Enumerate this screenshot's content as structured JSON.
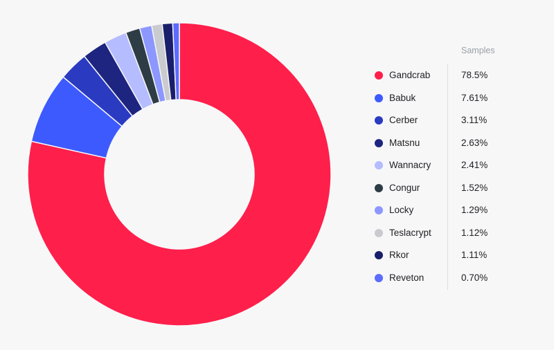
{
  "chart_data": {
    "type": "pie",
    "donut": true,
    "legend_header": "Samples",
    "legend_position": "right",
    "series": [
      {
        "name": "Gandcrab",
        "value": 78.5,
        "label": "78.5%",
        "color": "#ff1f4b"
      },
      {
        "name": "Babuk",
        "value": 7.61,
        "label": "7.61%",
        "color": "#3d5afe"
      },
      {
        "name": "Cerber",
        "value": 3.11,
        "label": "3.11%",
        "color": "#2a3bc2"
      },
      {
        "name": "Matsnu",
        "value": 2.63,
        "label": "2.63%",
        "color": "#1d2580"
      },
      {
        "name": "Wannacry",
        "value": 2.41,
        "label": "2.41%",
        "color": "#b5bcff"
      },
      {
        "name": "Congur",
        "value": 1.52,
        "label": "1.52%",
        "color": "#2e3d45"
      },
      {
        "name": "Locky",
        "value": 1.29,
        "label": "1.29%",
        "color": "#8c98ff"
      },
      {
        "name": "Teslacrypt",
        "value": 1.12,
        "label": "1.12%",
        "color": "#c9cbce"
      },
      {
        "name": "Rkor",
        "value": 1.11,
        "label": "1.11%",
        "color": "#1a1f6b"
      },
      {
        "name": "Reveton",
        "value": 0.7,
        "label": "0.70%",
        "color": "#5b6cff"
      }
    ]
  }
}
